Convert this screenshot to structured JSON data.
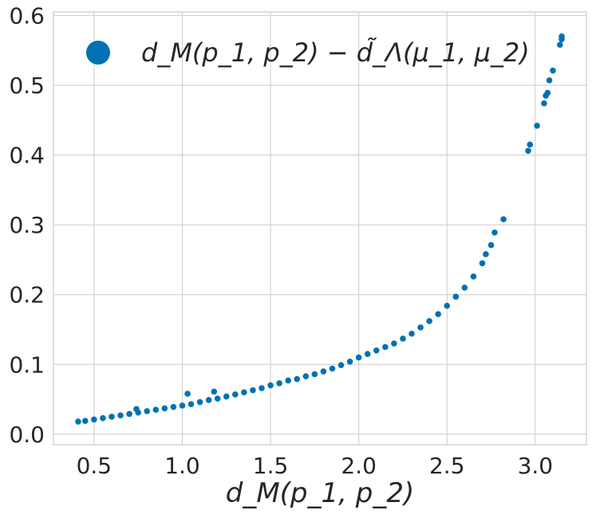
{
  "chart_data": {
    "type": "scatter",
    "title": "",
    "xlabel": "d_M(p_1, p_2)",
    "ylabel": "",
    "xlim": [
      0.27,
      3.29
    ],
    "ylim": [
      -0.015,
      0.605
    ],
    "xticks": [
      0.5,
      1.0,
      1.5,
      2.0,
      2.5,
      3.0
    ],
    "xtick_labels": [
      "0.5",
      "1.0",
      "1.5",
      "2.0",
      "2.5",
      "3.0"
    ],
    "yticks": [
      0.0,
      0.1,
      0.2,
      0.3,
      0.4,
      0.5,
      0.6
    ],
    "ytick_labels": [
      "0.0",
      "0.1",
      "0.2",
      "0.3",
      "0.4",
      "0.5",
      "0.6"
    ],
    "grid": true,
    "legend_position": "top-left",
    "series": [
      {
        "name": "d_M(p_1, p_2) − d̃_Λ(μ_1, μ_2)",
        "color": "#0072b2",
        "points": [
          [
            0.41,
            0.018
          ],
          [
            0.45,
            0.019
          ],
          [
            0.5,
            0.021
          ],
          [
            0.55,
            0.023
          ],
          [
            0.6,
            0.025
          ],
          [
            0.65,
            0.027
          ],
          [
            0.7,
            0.029
          ],
          [
            0.75,
            0.031
          ],
          [
            0.8,
            0.033
          ],
          [
            0.85,
            0.035
          ],
          [
            0.9,
            0.037
          ],
          [
            0.95,
            0.039
          ],
          [
            1.0,
            0.041
          ],
          [
            1.05,
            0.043
          ],
          [
            1.1,
            0.046
          ],
          [
            1.15,
            0.049
          ],
          [
            1.2,
            0.051
          ],
          [
            1.25,
            0.054
          ],
          [
            1.3,
            0.057
          ],
          [
            1.35,
            0.06
          ],
          [
            1.4,
            0.063
          ],
          [
            1.45,
            0.066
          ],
          [
            1.5,
            0.07
          ],
          [
            1.55,
            0.073
          ],
          [
            1.6,
            0.077
          ],
          [
            1.65,
            0.079
          ],
          [
            1.7,
            0.083
          ],
          [
            1.75,
            0.086
          ],
          [
            1.8,
            0.09
          ],
          [
            1.85,
            0.094
          ],
          [
            1.9,
            0.099
          ],
          [
            1.95,
            0.104
          ],
          [
            2.0,
            0.11
          ],
          [
            2.05,
            0.115
          ],
          [
            2.1,
            0.12
          ],
          [
            2.15,
            0.125
          ],
          [
            2.2,
            0.13
          ],
          [
            2.25,
            0.137
          ],
          [
            2.3,
            0.144
          ],
          [
            2.35,
            0.153
          ],
          [
            2.4,
            0.162
          ],
          [
            2.45,
            0.172
          ],
          [
            2.5,
            0.184
          ],
          [
            2.55,
            0.197
          ],
          [
            2.6,
            0.21
          ],
          [
            2.65,
            0.226
          ],
          [
            2.7,
            0.245
          ],
          [
            2.72,
            0.258
          ],
          [
            2.75,
            0.271
          ],
          [
            2.77,
            0.289
          ],
          [
            2.82,
            0.308
          ],
          [
            2.96,
            0.406
          ],
          [
            2.97,
            0.415
          ],
          [
            3.01,
            0.442
          ],
          [
            3.05,
            0.474
          ],
          [
            3.06,
            0.485
          ],
          [
            3.07,
            0.489
          ],
          [
            3.08,
            0.507
          ],
          [
            3.1,
            0.521
          ],
          [
            3.14,
            0.558
          ],
          [
            3.15,
            0.566
          ],
          [
            3.15,
            0.57
          ],
          [
            1.18,
            0.061
          ],
          [
            1.03,
            0.058
          ],
          [
            0.74,
            0.036
          ]
        ]
      }
    ]
  },
  "legend": {
    "label": "d_M(p_1, p_2) − d̃_Λ(μ_1, μ_2)"
  }
}
